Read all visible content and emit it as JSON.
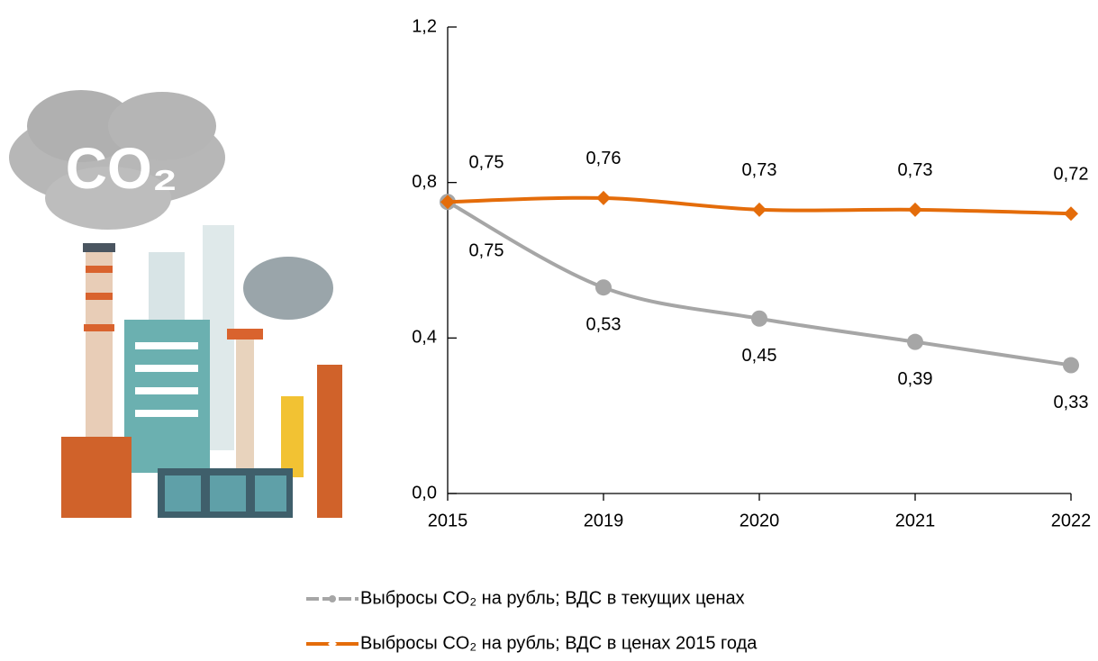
{
  "illustration_label": "CO₂",
  "chart_data": {
    "type": "line",
    "categories": [
      "2015",
      "2019",
      "2020",
      "2021",
      "2022"
    ],
    "ylim": [
      0,
      1.2
    ],
    "yticks": [
      {
        "value": 0,
        "label": "0,0"
      },
      {
        "value": 0.4,
        "label": "0,4"
      },
      {
        "value": 0.8,
        "label": "0,8"
      },
      {
        "value": 1.2,
        "label": "1,2"
      }
    ],
    "legend": "bottom",
    "series": [
      {
        "name": "Выбросы CO₂ на рубль; ВДС в текущих ценах",
        "color": "#a6a6a6",
        "marker": "circle",
        "values": [
          0.75,
          0.53,
          0.45,
          0.39,
          0.33
        ],
        "value_labels": [
          "0,75",
          "0,53",
          "0,45",
          "0,39",
          "0,33"
        ]
      },
      {
        "name": "Выбросы CO₂ на рубль; ВДС в ценах 2015 года",
        "color": "#e46c0a",
        "marker": "diamond",
        "values": [
          0.75,
          0.76,
          0.73,
          0.73,
          0.72
        ],
        "value_labels": [
          "0,75",
          "0,76",
          "0,73",
          "0,73",
          "0,72"
        ]
      }
    ]
  }
}
